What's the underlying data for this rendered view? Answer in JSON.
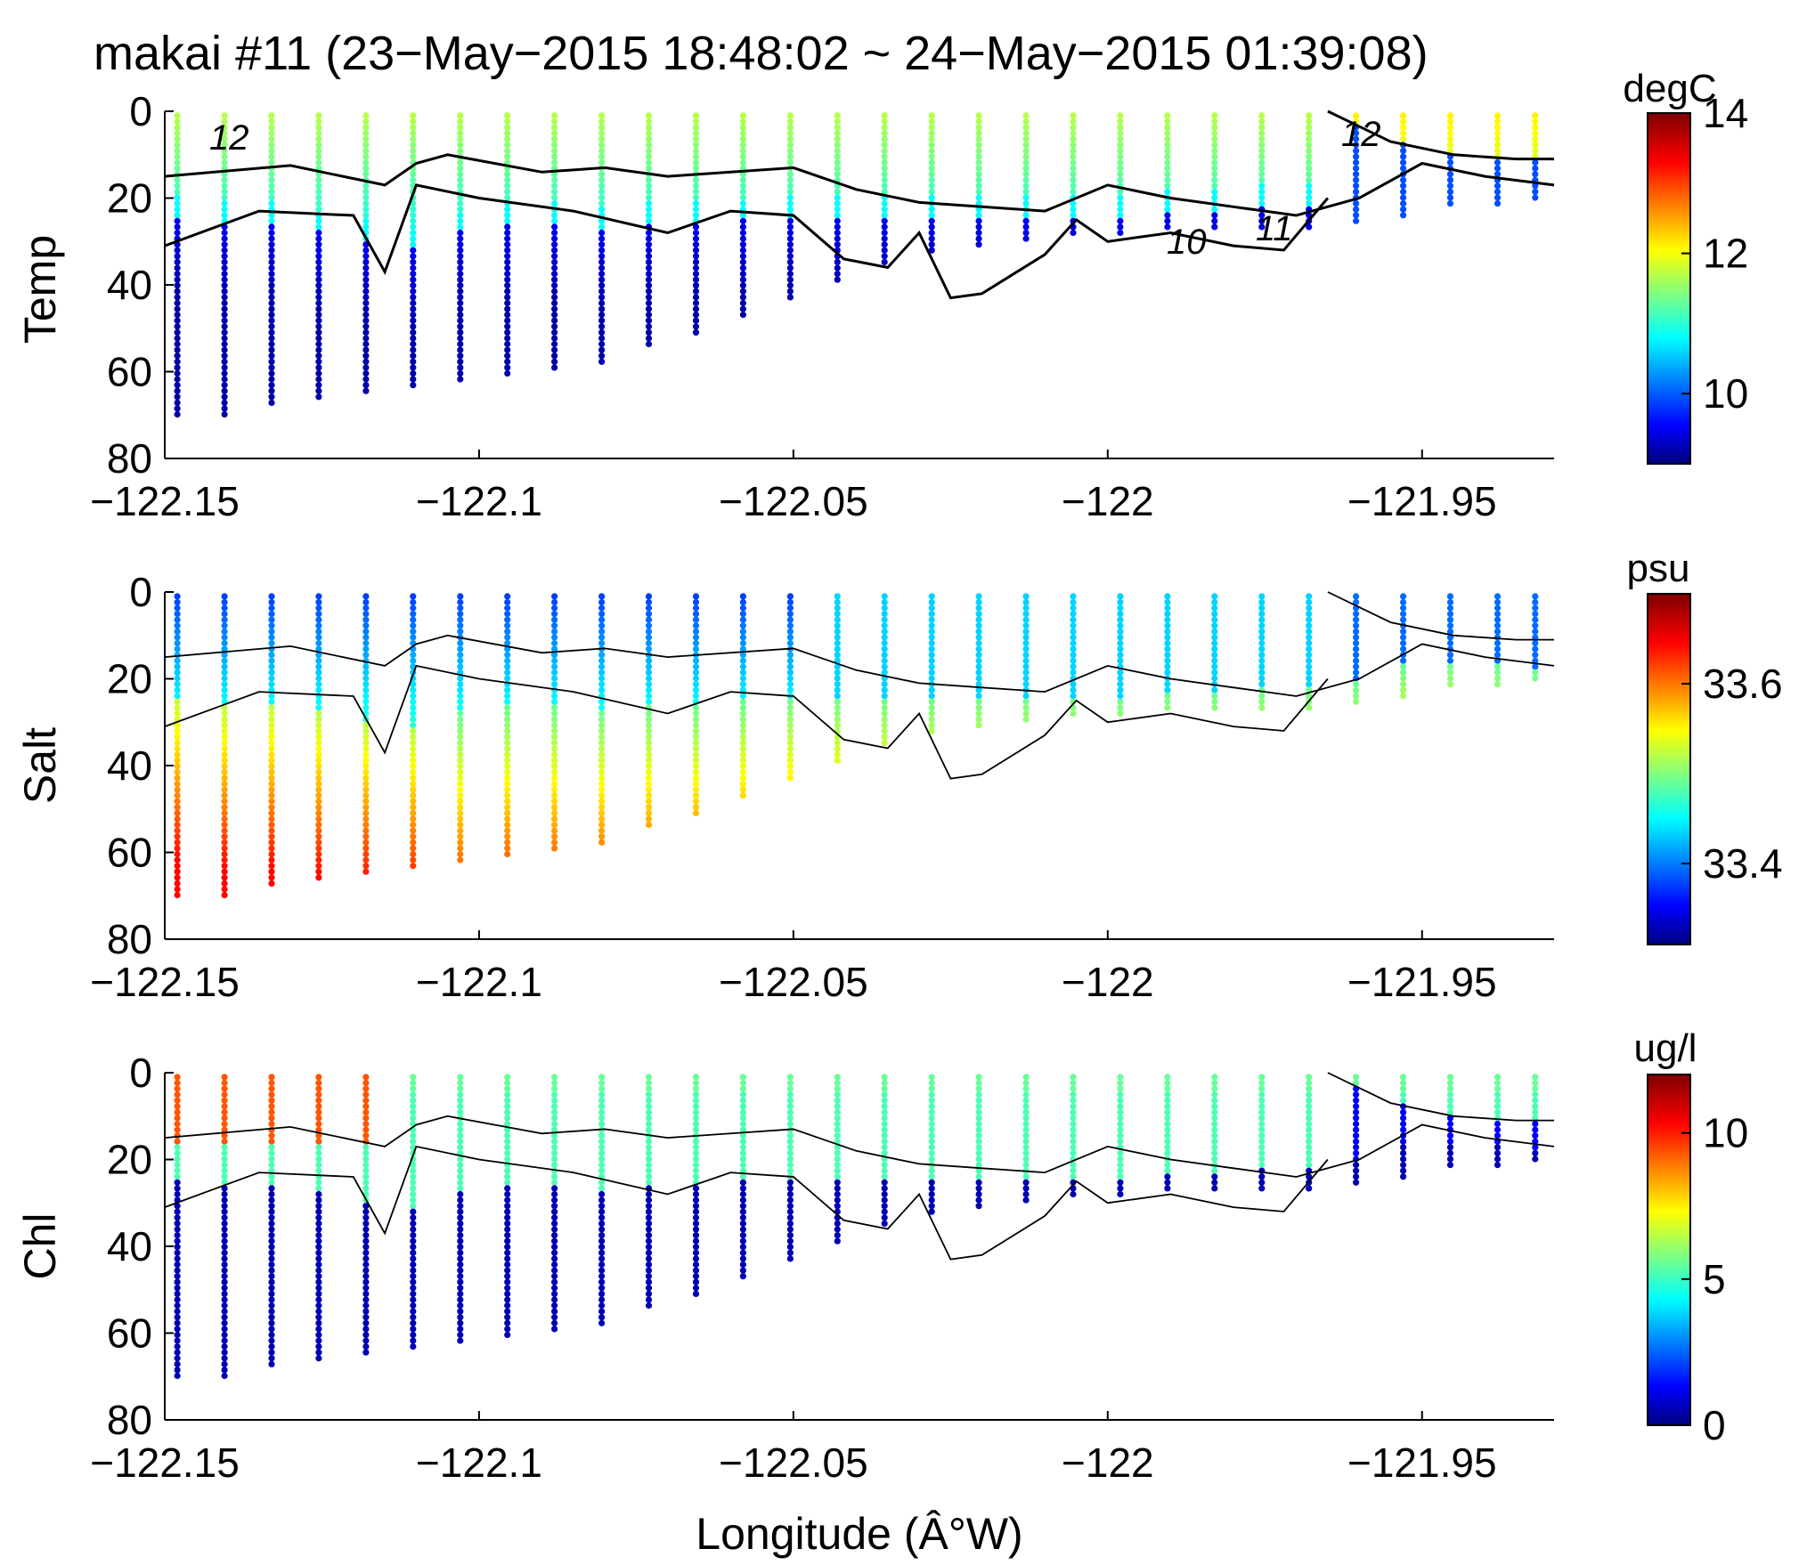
{
  "figure": {
    "title": "makai #11 (23−May−2015 18:48:02 ~ 24−May−2015 01:39:08)"
  },
  "chart_data": [
    {
      "type": "scatter",
      "variable": "Temp",
      "ylabel": "Temp",
      "xlabel": "",
      "xlim": [
        -122.15,
        -121.929
      ],
      "ylim": [
        80,
        0
      ],
      "xticks": [
        "−122.15",
        "−122.1",
        "−122.05",
        "−122",
        "−121.95"
      ],
      "yticks": [
        "0",
        "20",
        "40",
        "60",
        "80"
      ],
      "colorbar": {
        "unit": "degC",
        "range": [
          9,
          14
        ],
        "ticks": [
          "14",
          "12",
          "10"
        ],
        "tick_values": [
          14,
          12,
          10
        ]
      },
      "contour_labels": [
        "12",
        "12",
        "10",
        "11"
      ],
      "color_field": "temperature"
    },
    {
      "type": "scatter",
      "variable": "Salt",
      "ylabel": "Salt",
      "xlabel": "",
      "xlim": [
        -122.15,
        -121.929
      ],
      "ylim": [
        80,
        0
      ],
      "xticks": [
        "−122.15",
        "−122.1",
        "−122.05",
        "−122",
        "−121.95"
      ],
      "yticks": [
        "0",
        "20",
        "40",
        "60",
        "80"
      ],
      "colorbar": {
        "unit": "psu",
        "range": [
          33.31,
          33.7
        ],
        "ticks": [
          "33.6",
          "33.4"
        ],
        "tick_values": [
          33.6,
          33.4
        ]
      },
      "contour_labels": [],
      "color_field": "salinity"
    },
    {
      "type": "scatter",
      "variable": "Chl",
      "ylabel": "Chl",
      "xlabel": "Longitude (Â°W)",
      "xlim": [
        -122.15,
        -121.929
      ],
      "ylim": [
        80,
        0
      ],
      "xticks": [
        "−122.15",
        "−122.1",
        "−122.05",
        "−122",
        "−121.95"
      ],
      "yticks": [
        "0",
        "20",
        "40",
        "60",
        "80"
      ],
      "colorbar": {
        "unit": "ug/l",
        "range": [
          0,
          12
        ],
        "ticks": [
          "10",
          "5",
          "0"
        ],
        "tick_values": [
          10,
          5,
          0
        ]
      },
      "contour_labels": [],
      "color_field": "chlorophyll"
    }
  ],
  "profiles": {
    "x": [
      -122.148,
      -122.1405,
      -122.133,
      -122.1255,
      -122.118,
      -122.1105,
      -122.103,
      -122.0955,
      -122.088,
      -122.0805,
      -122.073,
      -122.0655,
      -122.058,
      -122.0505,
      -122.043,
      -122.0355,
      -122.028,
      -122.0205,
      -122.013,
      -122.0055,
      -121.998,
      -121.9905,
      -121.983,
      -121.9755,
      -121.968,
      -121.9605,
      -121.953,
      -121.9455,
      -121.938,
      -121.932
    ],
    "max_depth": [
      70,
      71,
      68,
      66,
      65,
      64,
      63,
      61,
      60,
      58,
      55,
      52,
      48,
      44,
      40,
      36,
      33,
      31,
      30,
      29,
      29,
      28,
      28,
      27,
      27,
      26,
      24,
      22,
      22,
      21
    ],
    "thermocline_depth": [
      22,
      24,
      24,
      26,
      28,
      30,
      26,
      24,
      24,
      25,
      24,
      24,
      23,
      22,
      22,
      22,
      22,
      22,
      22,
      22,
      22,
      21,
      21,
      20,
      20,
      19,
      15,
      14,
      15,
      16
    ]
  },
  "contours": {
    "upper_isotherm": {
      "x": [
        -122.15,
        -122.13,
        -122.115,
        -122.11,
        -122.105,
        -122.09,
        -122.08,
        -122.07,
        -122.05,
        -122.04,
        -122.03,
        -122.02,
        -122.01,
        -122.0,
        -121.99,
        -121.98,
        -121.97,
        -121.96,
        -121.95,
        -121.94,
        -121.929
      ],
      "y": [
        15,
        12.5,
        17,
        12,
        10,
        14,
        13,
        15,
        13,
        18,
        21,
        22,
        23,
        17,
        20,
        22,
        24,
        20,
        12,
        15,
        17
      ]
    },
    "lower_isotherm": {
      "x": [
        -122.15,
        -122.135,
        -122.12,
        -122.115,
        -122.11,
        -122.1,
        -122.085,
        -122.07,
        -122.06,
        -122.05,
        -122.042,
        -122.035,
        -122.03,
        -122.025,
        -122.02,
        -122.01,
        -122.005,
        -122.0,
        -121.99,
        -121.98,
        -121.972,
        -121.965
      ],
      "y": [
        31,
        23,
        24,
        37,
        17,
        20,
        23,
        28,
        23,
        24,
        34,
        36,
        28,
        43,
        42,
        33,
        25,
        30,
        28,
        31,
        32,
        20
      ]
    },
    "surface_isotherm": {
      "x": [
        -121.965,
        -121.955,
        -121.945,
        -121.935,
        -121.929
      ],
      "y": [
        0,
        7,
        10,
        11,
        11
      ]
    }
  }
}
